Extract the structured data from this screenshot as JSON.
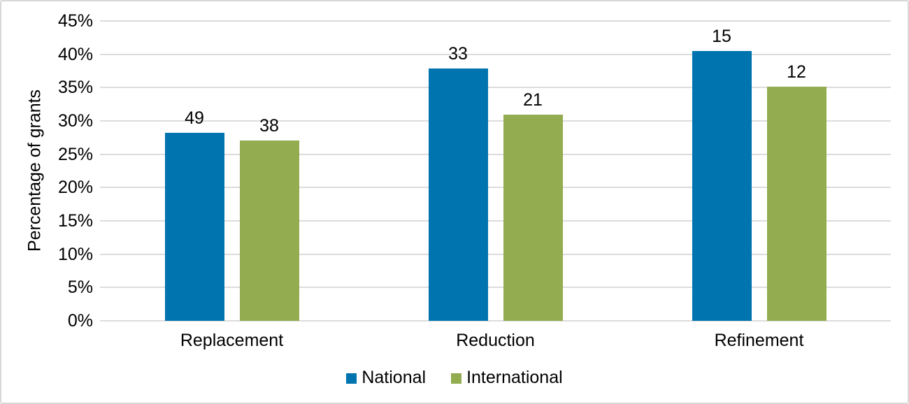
{
  "chart_data": {
    "type": "bar",
    "title": "",
    "categories": [
      "Replacement",
      "Reduction",
      "Refinement"
    ],
    "series": [
      {
        "name": "National",
        "color": "#0074AF",
        "values_pct": [
          28.2,
          37.9,
          40.5
        ],
        "bar_labels": [
          "49",
          "33",
          "15"
        ]
      },
      {
        "name": "International",
        "color": "#92AC4F",
        "values_pct": [
          27.1,
          30.9,
          35.1
        ],
        "bar_labels": [
          "38",
          "21",
          "12"
        ]
      }
    ],
    "xlabel": "",
    "ylabel": "Percentage of grants",
    "ylim": [
      0,
      45
    ],
    "ytick_step": 5,
    "ytick_suffix": "%",
    "grid": true,
    "gridline_color": "#DCDCDC",
    "text_color": "#000000",
    "background_color": "#FFFFFF",
    "frame_border_color": "#D8D8D8",
    "legend_position": "bottom-center"
  }
}
